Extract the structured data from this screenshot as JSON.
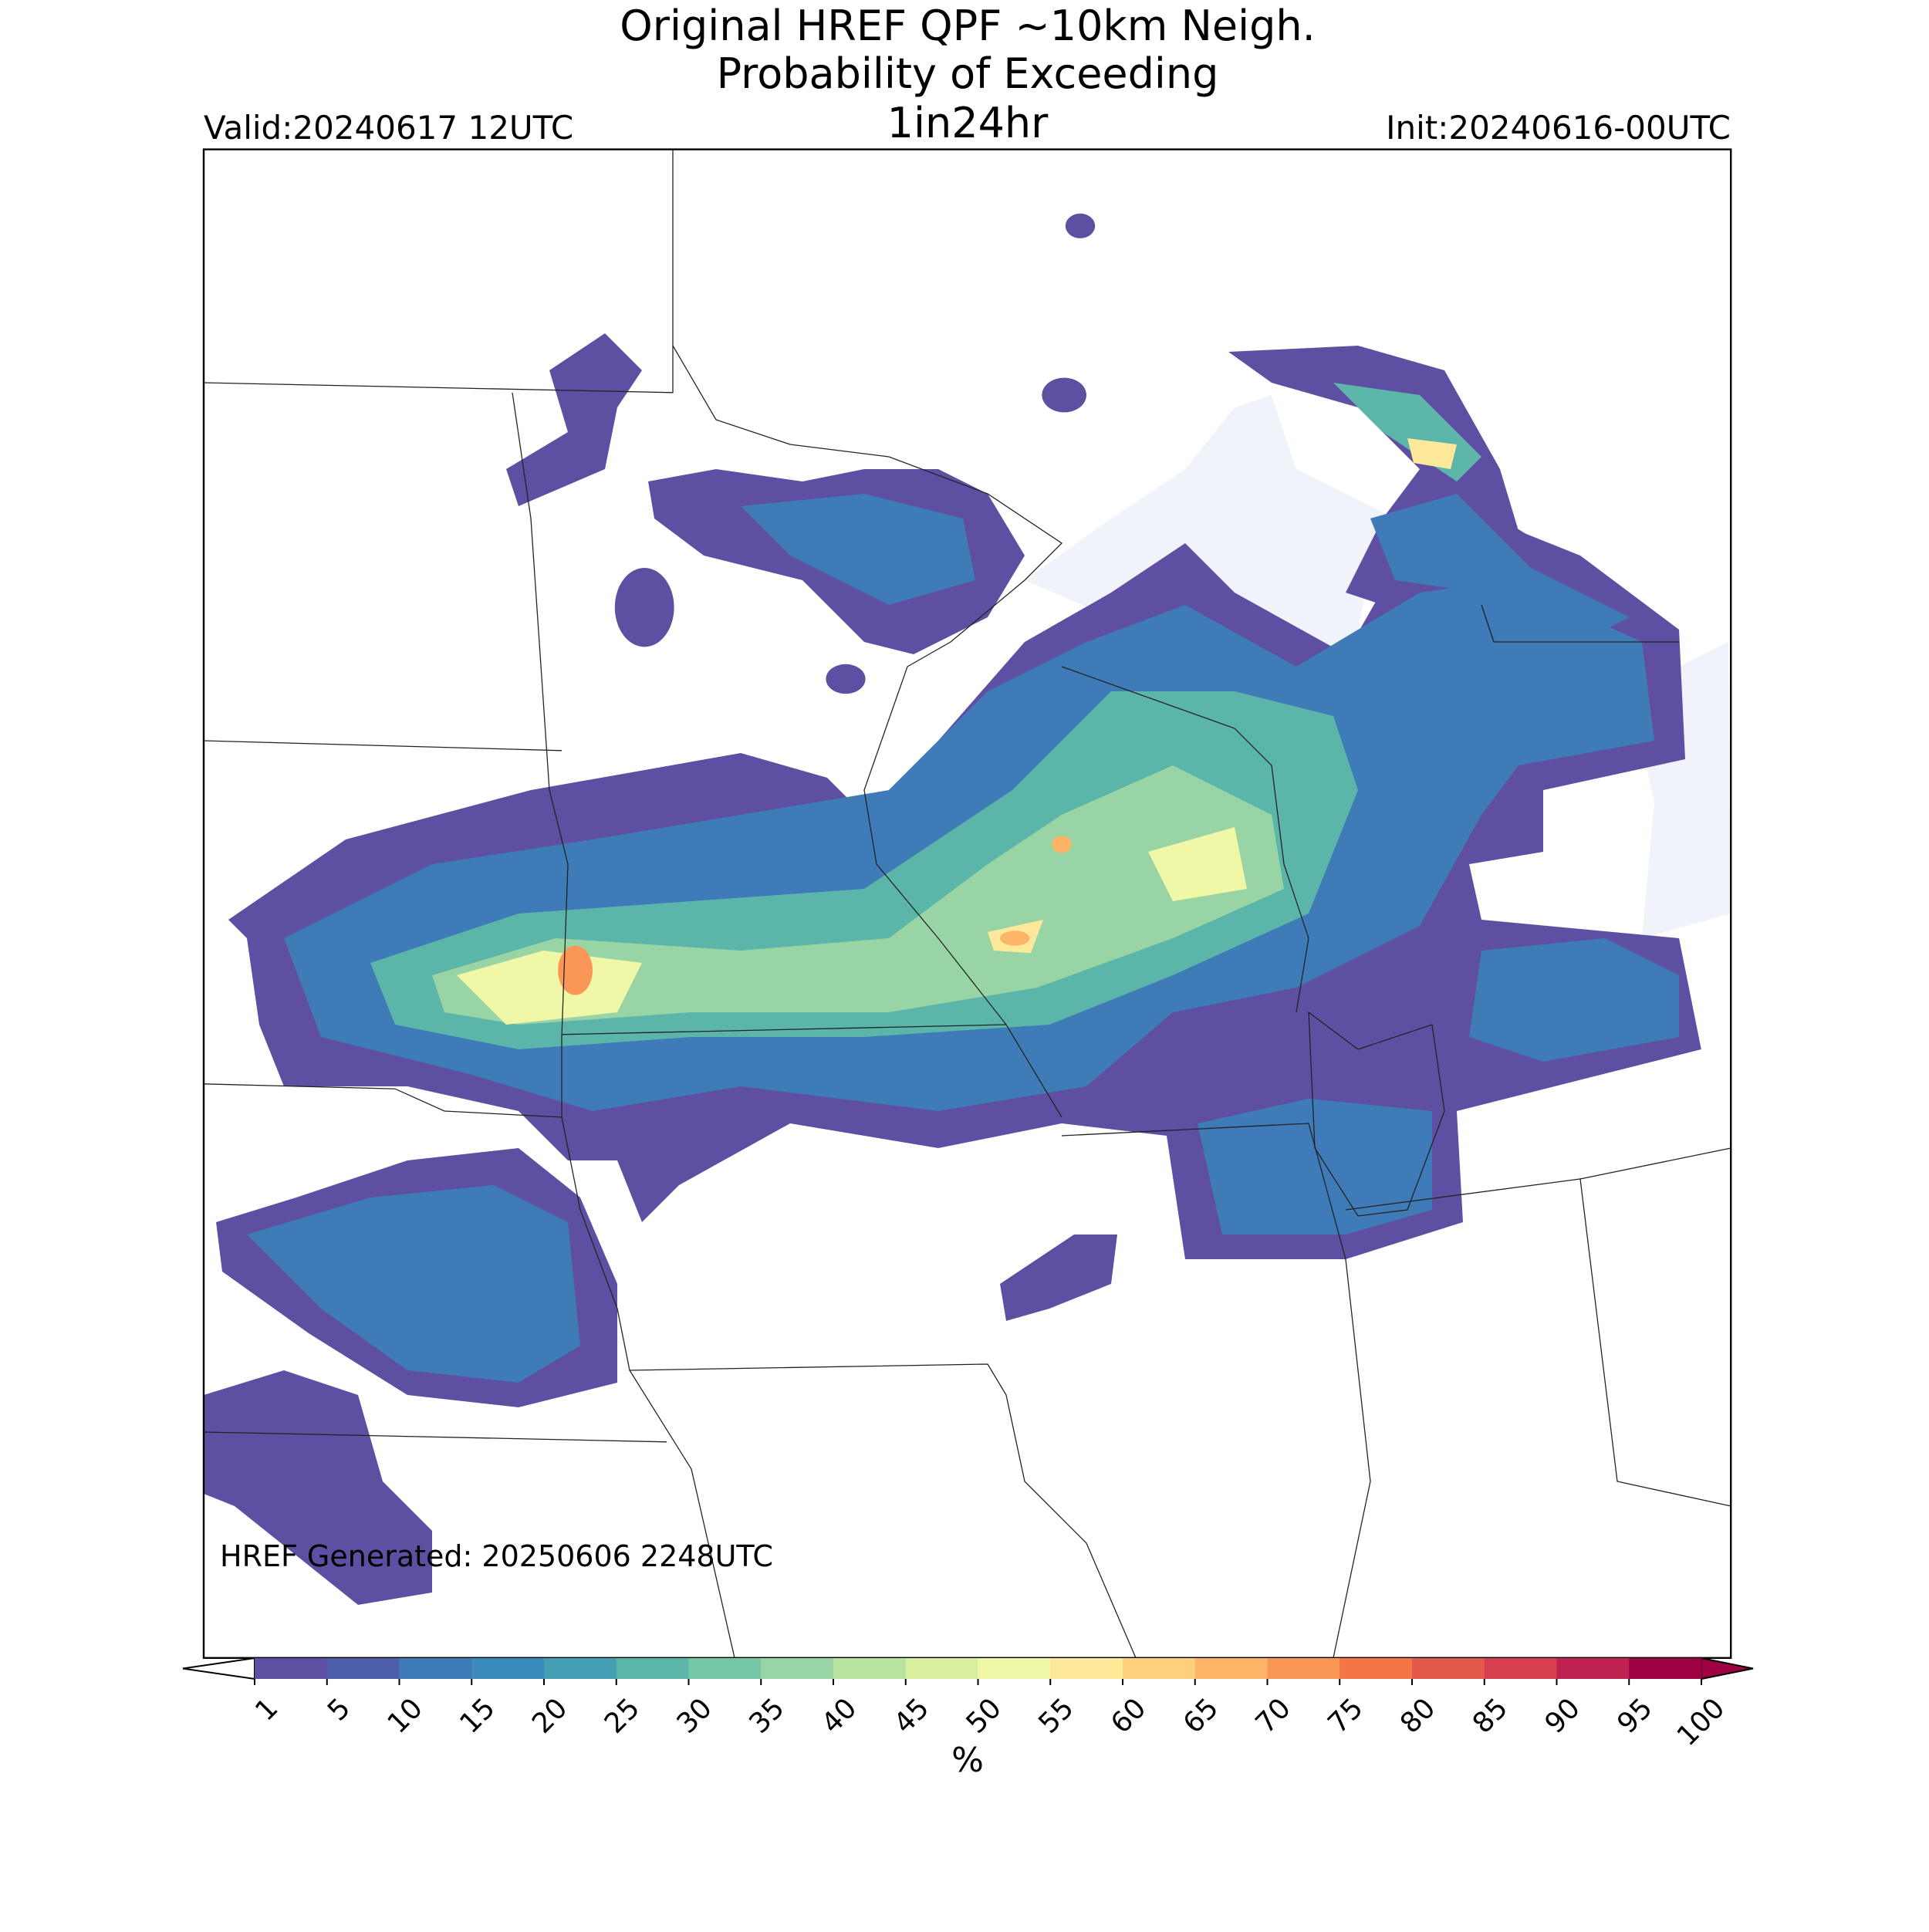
{
  "chart_data": {
    "type": "map",
    "title": [
      "Original HREF QPF ~10km Neigh.",
      "Probability of Exceeding"
    ],
    "threshold": "1in24hr",
    "valid": "Valid:20240617 12UTC",
    "init": "Init:20240616-00UTC",
    "annotation": "HREF Generated: 20250606 2248UTC",
    "colorbar": {
      "label": "%",
      "ticks": [
        1,
        5,
        10,
        15,
        20,
        25,
        30,
        35,
        40,
        45,
        50,
        55,
        60,
        65,
        70,
        75,
        80,
        85,
        90,
        95,
        100
      ],
      "colors": [
        "#5e4fa2",
        "#4d5faa",
        "#3e7bb7",
        "#3a8bbb",
        "#439fb4",
        "#5bb5a9",
        "#76c7a5",
        "#99d5a4",
        "#b9e3a1",
        "#d8efa0",
        "#f0f8a8",
        "#fee89a",
        "#fed07e",
        "#fdb466",
        "#fa9656",
        "#f57547",
        "#e45a4a",
        "#d6404e",
        "#bd2250",
        "#9e0142"
      ],
      "under_color": "#ffffff",
      "over_color": "#9e0142"
    }
  }
}
